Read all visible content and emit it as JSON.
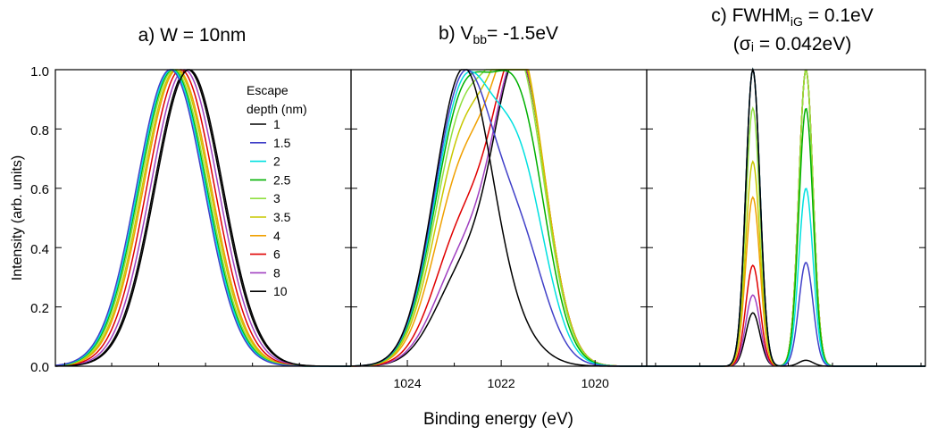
{
  "figure": {
    "xlabel": "Binding energy (eV)",
    "ylabel": "Intensity (arb. units)",
    "ytick_labels": [
      "0.0",
      "0.2",
      "0.4",
      "0.6",
      "0.8",
      "1.0"
    ],
    "legend_title_line1": "Escape",
    "legend_title_line2": "depth (nm)"
  },
  "chart_data": [
    {
      "type": "line",
      "panel": "a",
      "title": "a) W = 10nm",
      "ylim": [
        0,
        1.0
      ],
      "xlim": [
        1025.2,
        1018.9
      ],
      "note": "each series is a Gaussian-like peak; values estimated from the figure",
      "series": [
        {
          "name": "1",
          "color": "#000000",
          "peaks": [
            {
              "center": 1022.35,
              "amp": 1.0,
              "sigma": 0.72
            }
          ]
        },
        {
          "name": "1.5",
          "color": "#4040c8",
          "peaks": [
            {
              "center": 1022.75,
              "amp": 1.0,
              "sigma": 0.72
            }
          ]
        },
        {
          "name": "2",
          "color": "#00e0e0",
          "peaks": [
            {
              "center": 1022.72,
              "amp": 1.0,
              "sigma": 0.72
            }
          ]
        },
        {
          "name": "2.5",
          "color": "#00b000",
          "peaks": [
            {
              "center": 1022.7,
              "amp": 1.0,
              "sigma": 0.72
            }
          ]
        },
        {
          "name": "3",
          "color": "#90e040",
          "peaks": [
            {
              "center": 1022.67,
              "amp": 1.0,
              "sigma": 0.72
            }
          ]
        },
        {
          "name": "3.5",
          "color": "#c8c800",
          "peaks": [
            {
              "center": 1022.63,
              "amp": 1.0,
              "sigma": 0.72
            }
          ]
        },
        {
          "name": "4",
          "color": "#f0a000",
          "peaks": [
            {
              "center": 1022.6,
              "amp": 1.0,
              "sigma": 0.72
            }
          ]
        },
        {
          "name": "6",
          "color": "#e00000",
          "peaks": [
            {
              "center": 1022.53,
              "amp": 1.0,
              "sigma": 0.72
            }
          ]
        },
        {
          "name": "8",
          "color": "#a040c0",
          "peaks": [
            {
              "center": 1022.45,
              "amp": 1.0,
              "sigma": 0.72
            }
          ]
        },
        {
          "name": "10",
          "color": "#000000",
          "peaks": [
            {
              "center": 1022.38,
              "amp": 1.0,
              "sigma": 0.72
            }
          ]
        }
      ]
    },
    {
      "type": "line",
      "panel": "b",
      "title_pre": "b) V",
      "title_sub": "bb",
      "title_post": "= -1.5eV",
      "xticks": [
        1024,
        1022,
        1020
      ],
      "xlim": [
        1025.2,
        1018.9
      ],
      "ylim": [
        0,
        1.0
      ],
      "series": [
        {
          "name": "1",
          "color": "#000000",
          "peaks": [
            {
              "center": 1022.8,
              "amp": 1.0,
              "sigma": 0.62
            },
            {
              "center": 1021.6,
              "amp": 0.06,
              "sigma": 0.55
            }
          ]
        },
        {
          "name": "1.5",
          "color": "#4040c8",
          "peaks": [
            {
              "center": 1022.8,
              "amp": 0.96,
              "sigma": 0.62
            },
            {
              "center": 1021.6,
              "amp": 0.38,
              "sigma": 0.55
            }
          ]
        },
        {
          "name": "2",
          "color": "#00e0e0",
          "peaks": [
            {
              "center": 1022.8,
              "amp": 0.92,
              "sigma": 0.62
            },
            {
              "center": 1021.6,
              "amp": 0.62,
              "sigma": 0.55
            }
          ]
        },
        {
          "name": "2.5",
          "color": "#00b000",
          "peaks": [
            {
              "center": 1022.8,
              "amp": 0.88,
              "sigma": 0.62
            },
            {
              "center": 1021.6,
              "amp": 0.8,
              "sigma": 0.55
            }
          ]
        },
        {
          "name": "3",
          "color": "#90e040",
          "peaks": [
            {
              "center": 1022.8,
              "amp": 0.82,
              "sigma": 0.62
            },
            {
              "center": 1021.6,
              "amp": 0.93,
              "sigma": 0.55
            }
          ]
        },
        {
          "name": "3.5",
          "color": "#c8c800",
          "peaks": [
            {
              "center": 1022.8,
              "amp": 0.74,
              "sigma": 0.62
            },
            {
              "center": 1021.6,
              "amp": 0.98,
              "sigma": 0.55
            }
          ]
        },
        {
          "name": "4",
          "color": "#f0a000",
          "peaks": [
            {
              "center": 1022.8,
              "amp": 0.64,
              "sigma": 0.62
            },
            {
              "center": 1021.6,
              "amp": 1.0,
              "sigma": 0.55
            }
          ]
        },
        {
          "name": "6",
          "color": "#e00000",
          "peaks": [
            {
              "center": 1022.8,
              "amp": 0.45,
              "sigma": 0.62
            },
            {
              "center": 1021.6,
              "amp": 1.0,
              "sigma": 0.55
            }
          ]
        },
        {
          "name": "8",
          "color": "#a040c0",
          "peaks": [
            {
              "center": 1022.8,
              "amp": 0.35,
              "sigma": 0.62
            },
            {
              "center": 1021.6,
              "amp": 1.0,
              "sigma": 0.55
            }
          ]
        },
        {
          "name": "10",
          "color": "#000000",
          "peaks": [
            {
              "center": 1022.8,
              "amp": 0.3,
              "sigma": 0.62
            },
            {
              "center": 1021.6,
              "amp": 1.0,
              "sigma": 0.55
            }
          ]
        }
      ]
    },
    {
      "type": "line",
      "panel": "c",
      "title_line1_pre": "c) FWHM",
      "title_line1_sub": "iG",
      "title_line1_post": " = 0.1eV",
      "title_line2": "(σᵢ = 0.042eV)",
      "xlim": [
        1025.2,
        1018.9
      ],
      "ylim": [
        0,
        1.0
      ],
      "series": [
        {
          "name": "1",
          "color": "#000000",
          "peaks": [
            {
              "center": 1022.8,
              "amp": 1.0,
              "sigma": 0.16
            },
            {
              "center": 1021.6,
              "amp": 0.02,
              "sigma": 0.16
            }
          ]
        },
        {
          "name": "1.5",
          "color": "#4040c8",
          "peaks": [
            {
              "center": 1022.8,
              "amp": 1.0,
              "sigma": 0.16
            },
            {
              "center": 1021.6,
              "amp": 0.35,
              "sigma": 0.16
            }
          ]
        },
        {
          "name": "2",
          "color": "#00e0e0",
          "peaks": [
            {
              "center": 1022.8,
              "amp": 1.0,
              "sigma": 0.16
            },
            {
              "center": 1021.6,
              "amp": 0.6,
              "sigma": 0.16
            }
          ]
        },
        {
          "name": "2.5",
          "color": "#00b000",
          "peaks": [
            {
              "center": 1022.8,
              "amp": 1.0,
              "sigma": 0.16
            },
            {
              "center": 1021.6,
              "amp": 0.87,
              "sigma": 0.16
            }
          ]
        },
        {
          "name": "3",
          "color": "#90e040",
          "peaks": [
            {
              "center": 1022.8,
              "amp": 0.87,
              "sigma": 0.16
            },
            {
              "center": 1021.6,
              "amp": 1.0,
              "sigma": 0.16
            }
          ]
        },
        {
          "name": "3.5",
          "color": "#c8c800",
          "peaks": [
            {
              "center": 1022.8,
              "amp": 0.69,
              "sigma": 0.16
            },
            {
              "center": 1021.6,
              "amp": 1.0,
              "sigma": 0.16
            }
          ]
        },
        {
          "name": "4",
          "color": "#f0a000",
          "peaks": [
            {
              "center": 1022.8,
              "amp": 0.57,
              "sigma": 0.16
            },
            {
              "center": 1021.6,
              "amp": 1.0,
              "sigma": 0.16
            }
          ]
        },
        {
          "name": "6",
          "color": "#e00000",
          "peaks": [
            {
              "center": 1022.8,
              "amp": 0.34,
              "sigma": 0.16
            },
            {
              "center": 1021.6,
              "amp": 1.0,
              "sigma": 0.16
            }
          ]
        },
        {
          "name": "8",
          "color": "#a040c0",
          "peaks": [
            {
              "center": 1022.8,
              "amp": 0.24,
              "sigma": 0.16
            },
            {
              "center": 1021.6,
              "amp": 1.0,
              "sigma": 0.16
            }
          ]
        },
        {
          "name": "10",
          "color": "#000000",
          "peaks": [
            {
              "center": 1022.8,
              "amp": 0.18,
              "sigma": 0.16
            },
            {
              "center": 1021.6,
              "amp": 1.0,
              "sigma": 0.16
            }
          ]
        }
      ]
    }
  ]
}
